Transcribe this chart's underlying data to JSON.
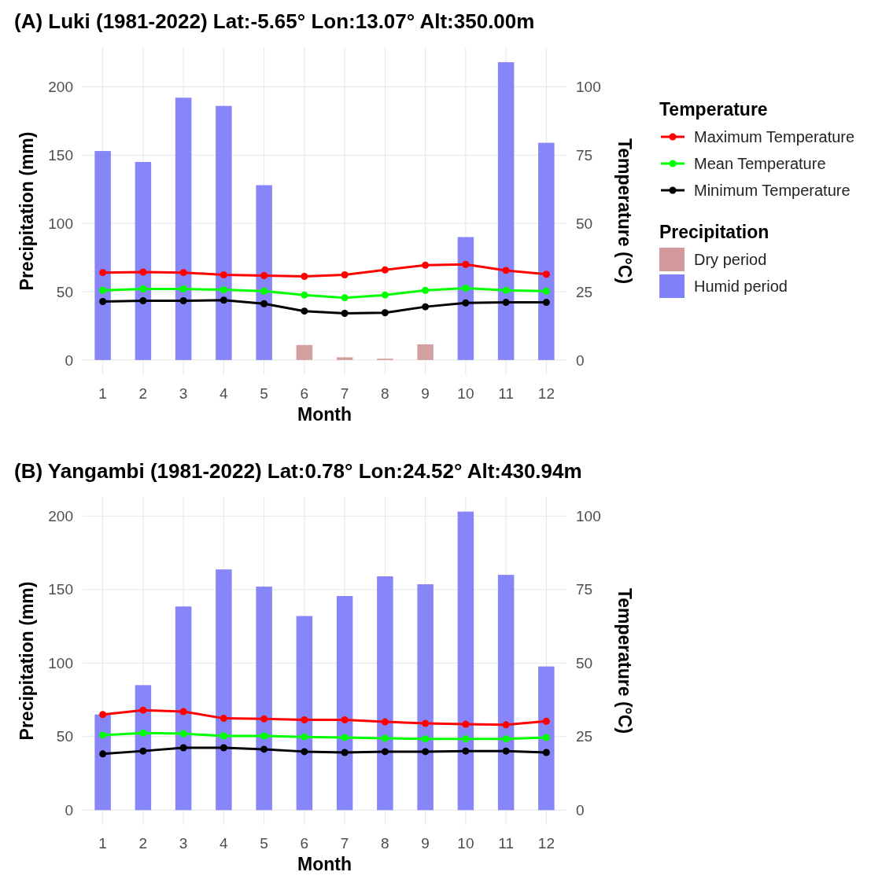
{
  "chart_data": [
    {
      "type": "bar",
      "title": "(A) Luki (1981-2022) Lat:-5.65°  Lon:13.07°  Alt:350.00m",
      "xlabel": "Month",
      "ylabel": "Precipitation (mm)",
      "y2label": "Temperature (°C)",
      "legend_title": "Temperature",
      "annotations": [
        "Precipitation"
      ],
      "categories": [
        "1",
        "2",
        "3",
        "4",
        "5",
        "6",
        "7",
        "8",
        "9",
        "10",
        "11",
        "12"
      ],
      "ylim": [
        -11,
        229
      ],
      "yticks": [
        0,
        50,
        100,
        150,
        200
      ],
      "y2lim": [
        -5.5,
        114.5
      ],
      "y2ticks": [
        0,
        25,
        50,
        75,
        100
      ],
      "grid": true,
      "legend": "right",
      "marker": "circle",
      "line_style": "solid",
      "series": [
        {
          "name": "Maximum Temperature",
          "type": "line",
          "axis": "y2",
          "color": "#ff0000",
          "values": [
            32,
            32.2,
            32,
            31.2,
            30.9,
            30.6,
            31.2,
            33,
            34.7,
            35,
            32.8,
            31.4
          ]
        },
        {
          "name": "Mean Temperature",
          "type": "line",
          "axis": "y2",
          "color": "#00ff00",
          "values": [
            25.5,
            26,
            26,
            25.7,
            25.2,
            23.8,
            22.8,
            23.8,
            25.5,
            26.3,
            25.5,
            25.2
          ]
        },
        {
          "name": "Minimum Temperature",
          "type": "line",
          "axis": "y2",
          "color": "#000000",
          "values": [
            21.4,
            21.7,
            21.7,
            21.9,
            20.6,
            17.9,
            17.1,
            17.3,
            19.5,
            20.9,
            21.1,
            21.1
          ]
        },
        {
          "name": "Dry period",
          "color": "#d29a9a",
          "values": [
            null,
            null,
            null,
            null,
            null,
            11,
            2,
            1,
            11.5,
            null,
            null,
            null
          ]
        },
        {
          "name": "Humid period",
          "color": "#8080f8",
          "values": [
            153,
            145,
            192,
            186,
            128,
            null,
            null,
            null,
            null,
            90,
            218,
            159
          ]
        }
      ]
    },
    {
      "type": "bar",
      "title": "(B)  Yangambi (1981-2022) Lat:0.78°  Lon:24.52°  Alt:430.94m",
      "xlabel": "Month",
      "ylabel": "Precipitation (mm)",
      "y2label": "Temperature (°C)",
      "categories": [
        "1",
        "2",
        "3",
        "4",
        "5",
        "6",
        "7",
        "8",
        "9",
        "10",
        "11",
        "12"
      ],
      "ylim": [
        -10,
        213
      ],
      "yticks": [
        0,
        50,
        100,
        150,
        200
      ],
      "y2lim": [
        -5,
        106.5
      ],
      "y2ticks": [
        0,
        25,
        50,
        75,
        100
      ],
      "grid": true,
      "marker": "circle",
      "line_style": "solid",
      "series": [
        {
          "type": "line",
          "axis": "y2",
          "color": "#ff0000",
          "values": [
            32.5,
            34,
            33.5,
            31.2,
            31,
            30.7,
            30.7,
            30,
            29.5,
            29.2,
            29,
            30.2
          ]
        },
        {
          "type": "line",
          "axis": "y2",
          "color": "#00ff00",
          "values": [
            25.5,
            26.2,
            26,
            25.2,
            25.2,
            24.9,
            24.7,
            24.4,
            24.2,
            24.2,
            24.2,
            24.7
          ]
        },
        {
          "type": "line",
          "axis": "y2",
          "color": "#000000",
          "values": [
            19.1,
            20.1,
            21.2,
            21.2,
            20.7,
            19.9,
            19.6,
            19.9,
            19.9,
            20.1,
            20.1,
            19.6
          ]
        },
        {
          "color": "#8080f8",
          "values": [
            65,
            85,
            138.5,
            163.7,
            152,
            132,
            145.6,
            159,
            153.6,
            203,
            160,
            97.7
          ]
        }
      ]
    }
  ]
}
